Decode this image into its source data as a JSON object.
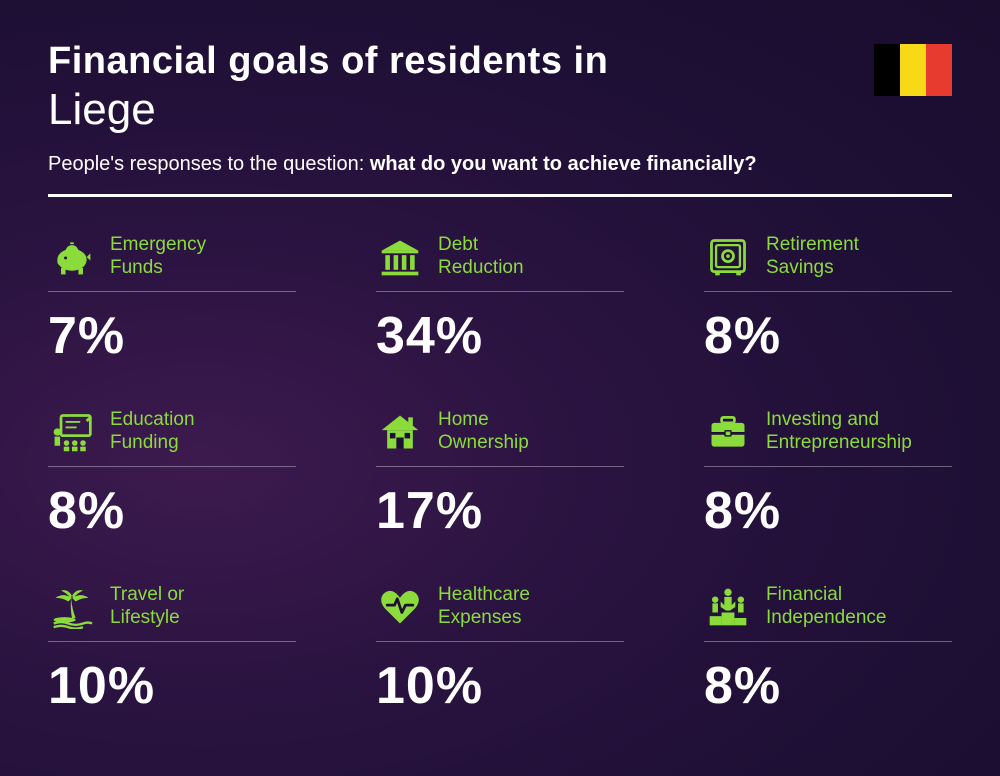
{
  "header": {
    "title_prefix": "Financial goals of residents in",
    "city": "Liege",
    "subtitle_prefix": "People's responses to the question: ",
    "subtitle_bold": "what do you want to achieve financially?"
  },
  "flag": {
    "stripes": [
      "#000000",
      "#f7d917",
      "#e63b2e"
    ]
  },
  "accent_color": "#8bdb3a",
  "text_color": "#ffffff",
  "items": [
    {
      "icon": "piggy",
      "label_l1": "Emergency",
      "label_l2": "Funds",
      "pct": "7%"
    },
    {
      "icon": "bank",
      "label_l1": "Debt",
      "label_l2": "Reduction",
      "pct": "34%"
    },
    {
      "icon": "safe",
      "label_l1": "Retirement",
      "label_l2": "Savings",
      "pct": "8%"
    },
    {
      "icon": "education",
      "label_l1": "Education",
      "label_l2": "Funding",
      "pct": "8%"
    },
    {
      "icon": "house",
      "label_l1": "Home",
      "label_l2": "Ownership",
      "pct": "17%"
    },
    {
      "icon": "briefcase",
      "label_l1": "Investing and",
      "label_l2": "Entrepreneurship",
      "pct": "8%"
    },
    {
      "icon": "palm",
      "label_l1": "Travel or",
      "label_l2": "Lifestyle",
      "pct": "10%"
    },
    {
      "icon": "health",
      "label_l1": "Healthcare",
      "label_l2": "Expenses",
      "pct": "10%"
    },
    {
      "icon": "podium",
      "label_l1": "Financial",
      "label_l2": "Independence",
      "pct": "8%"
    }
  ]
}
